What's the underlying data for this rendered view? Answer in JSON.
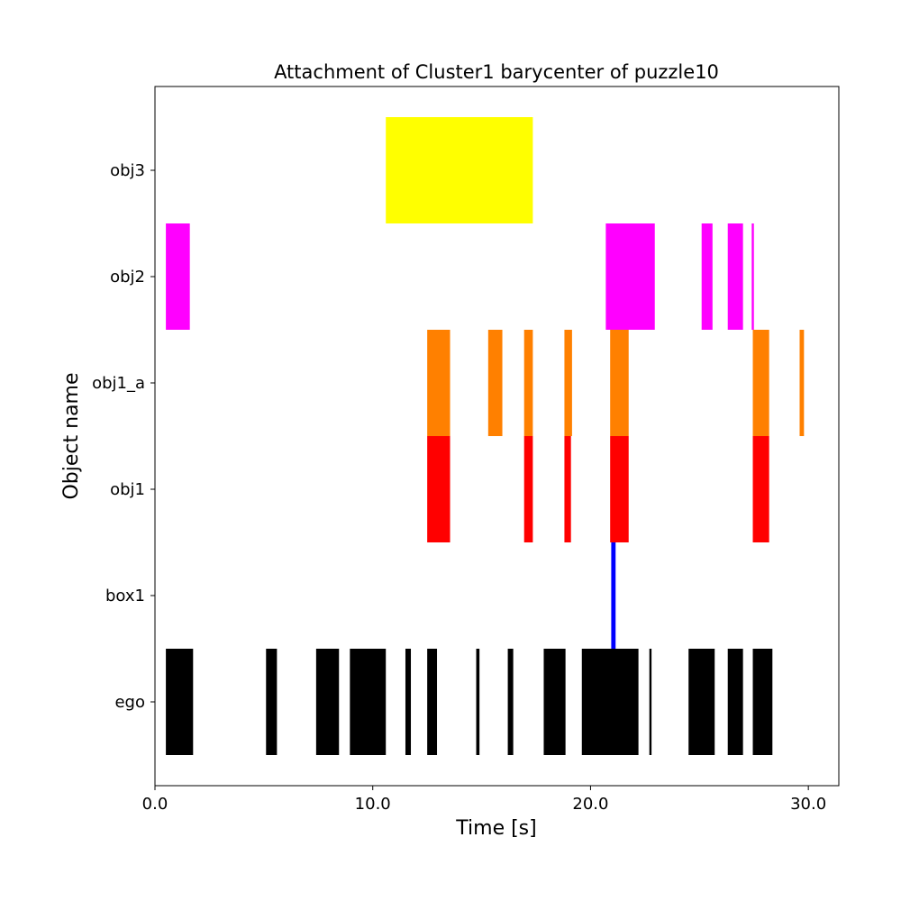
{
  "chart_data": {
    "type": "timeline",
    "title": "Attachment of Cluster1 barycenter of puzzle10",
    "xlabel": "Time [s]",
    "ylabel": "Object name",
    "xlim": [
      0.0,
      31.4
    ],
    "xticks": [
      0.0,
      10.0,
      20.0,
      30.0
    ],
    "xtick_labels": [
      "0.0",
      "10.0",
      "20.0",
      "30.0"
    ],
    "grid": false,
    "categories": [
      "ego",
      "box1",
      "obj1",
      "obj1_a",
      "obj2",
      "obj3"
    ],
    "series": [
      {
        "category": "obj3",
        "color": "#ffff00",
        "intervals": [
          [
            10.6,
            17.35
          ]
        ]
      },
      {
        "category": "obj2",
        "color": "#ff00ff",
        "intervals": [
          [
            0.5,
            1.6
          ],
          [
            20.7,
            22.95
          ],
          [
            25.1,
            25.6
          ],
          [
            26.3,
            27.0
          ],
          [
            27.4,
            27.5
          ]
        ]
      },
      {
        "category": "obj1_a",
        "color": "#ff8000",
        "intervals": [
          [
            12.5,
            13.55
          ],
          [
            15.3,
            15.95
          ],
          [
            16.95,
            17.35
          ],
          [
            18.8,
            19.15
          ],
          [
            20.9,
            21.75
          ],
          [
            27.45,
            28.2
          ],
          [
            29.6,
            29.8
          ]
        ]
      },
      {
        "category": "obj1",
        "color": "#ff0000",
        "intervals": [
          [
            12.5,
            13.55
          ],
          [
            16.95,
            17.35
          ],
          [
            18.8,
            19.1
          ],
          [
            20.9,
            21.75
          ],
          [
            27.45,
            28.2
          ]
        ]
      },
      {
        "category": "box1",
        "color": "#0000ff",
        "intervals": [
          [
            20.95,
            21.15
          ]
        ]
      },
      {
        "category": "ego",
        "color": "#000000",
        "intervals": [
          [
            0.5,
            1.75
          ],
          [
            5.1,
            5.6
          ],
          [
            7.4,
            8.45
          ],
          [
            8.95,
            10.6
          ],
          [
            11.5,
            11.75
          ],
          [
            12.5,
            12.95
          ],
          [
            14.75,
            14.9
          ],
          [
            16.2,
            16.45
          ],
          [
            17.85,
            18.85
          ],
          [
            19.6,
            22.2
          ],
          [
            22.7,
            22.8
          ],
          [
            24.5,
            25.7
          ],
          [
            26.3,
            27.0
          ],
          [
            27.45,
            28.35
          ]
        ]
      }
    ]
  }
}
